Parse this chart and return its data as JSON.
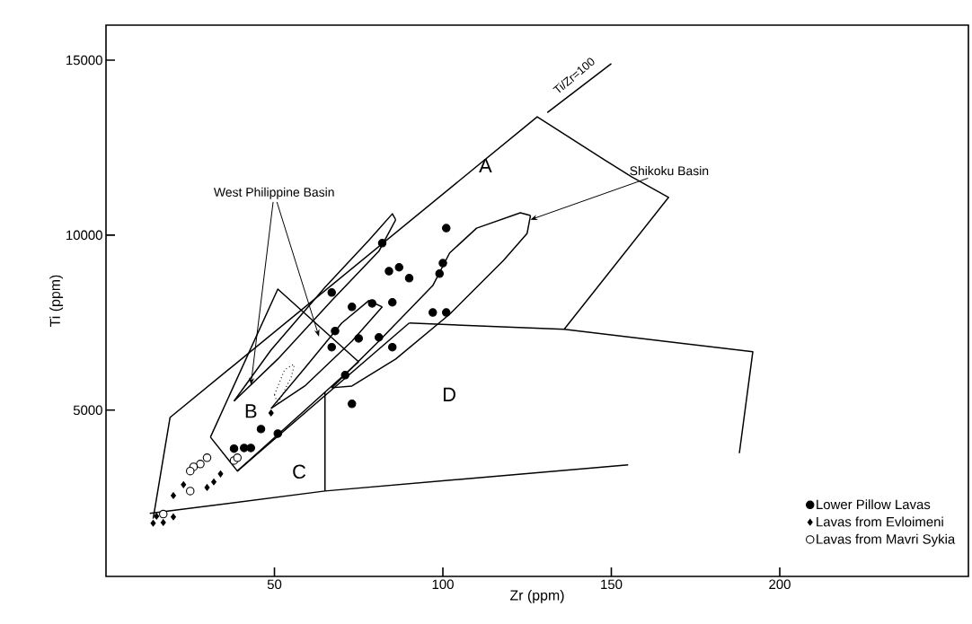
{
  "chart_data": {
    "type": "scatter",
    "xlabel": "Zr (ppm)",
    "ylabel": "Ti (ppm)",
    "xlim": [
      0,
      256
    ],
    "ylim": [
      250,
      16000
    ],
    "xticks": [
      50,
      100,
      150,
      200
    ],
    "yticks": [
      5000,
      10000,
      15000
    ],
    "grid": false,
    "legend": "bottom right",
    "annotations": [
      "A",
      "B",
      "C",
      "D",
      {
        "text": "West Philippine Basin",
        "x": 43,
        "y": 5720
      },
      "Shikoku Basin",
      {
        "text": "Ti/Zr=100",
        "x": 140,
        "y": 14200
      }
    ],
    "series": [
      {
        "name": "Lower Pillow Lavas",
        "marker": "circle",
        "color": "#000000",
        "x": [
          82,
          101,
          67,
          73,
          79,
          85,
          84,
          87,
          90,
          99,
          100,
          97,
          101,
          68,
          75,
          81,
          67,
          85,
          71,
          73,
          46,
          51,
          38,
          41,
          43
        ],
        "values": [
          9770,
          10200,
          8360,
          7950,
          8050,
          8080,
          8970,
          9080,
          8770,
          8900,
          9200,
          7790,
          7790,
          7260,
          7050,
          7080,
          6800,
          6800,
          6000,
          5180,
          4460,
          4330,
          3900,
          3920,
          3920
        ]
      },
      {
        "name": "Lavas from Evloimeni",
        "marker": "diamond",
        "color": "#000000",
        "x": [
          14,
          17,
          20,
          20,
          23,
          30,
          32,
          34,
          49,
          15
        ],
        "values": [
          1770,
          1790,
          1950,
          2560,
          2870,
          2790,
          2950,
          3180,
          4920,
          1970
        ]
      },
      {
        "name": "Lavas from Mavri Sykia",
        "marker": "circle",
        "color": "#ffffff",
        "x": [
          30,
          28,
          26,
          25,
          25,
          38,
          39,
          17
        ],
        "values": [
          3640,
          3460,
          3380,
          3260,
          2690,
          3560,
          3640,
          2030
        ]
      },
      {
        "type": "line",
        "marker": "none",
        "line_style": "solid",
        "color": "#000000",
        "x": [
          14,
          19,
          128,
          148,
          156,
          167,
          136
        ],
        "values": [
          1900,
          4790,
          13380,
          12150,
          11670,
          11080,
          7310
        ]
      },
      {
        "type": "line",
        "marker": "none",
        "line_style": "solid",
        "color": "#000000",
        "x": [
          90,
          136,
          192,
          188
        ],
        "values": [
          7490,
          7310,
          6670,
          3770
        ]
      },
      {
        "type": "line",
        "marker": "none",
        "line_style": "solid",
        "color": "#000000",
        "x": [
          13,
          65,
          155
        ],
        "values": [
          2050,
          2690,
          3440
        ]
      },
      {
        "type": "line",
        "marker": "none",
        "line_style": "solid",
        "color": "#000000",
        "x": [
          39,
          90
        ],
        "values": [
          3260,
          7490
        ]
      },
      {
        "type": "line",
        "marker": "none",
        "line_style": "solid",
        "color": "#000000",
        "x": [
          65,
          65
        ],
        "values": [
          5510,
          2690
        ]
      },
      {
        "type": "line",
        "marker": "none",
        "line_style": "solid",
        "color": "#000000",
        "x": [
          31,
          51,
          75
        ],
        "values": [
          4230,
          8460,
          6380
        ]
      },
      {
        "type": "line",
        "marker": "none",
        "line_style": "solid",
        "color": "#000000",
        "x": [
          31,
          39,
          75
        ],
        "values": [
          4230,
          3260,
          6380
        ]
      },
      {
        "type": "line",
        "marker": "none",
        "line_style": "solid",
        "color": "#000000",
        "x": [
          131,
          150
        ],
        "values": [
          13500,
          14900
        ]
      },
      {
        "type": "line",
        "marker": "none",
        "line_style": "solid",
        "color": "#000000",
        "x": [
          38,
          49,
          65,
          78,
          85,
          86
        ],
        "values": [
          5260,
          6720,
          8510,
          9850,
          10610,
          10440
        ]
      },
      {
        "type": "line",
        "marker": "none",
        "line_style": "solid",
        "color": "#000000",
        "x": [
          38,
          51,
          67,
          81,
          86
        ],
        "values": [
          5260,
          6460,
          8130,
          9540,
          10440
        ]
      },
      {
        "type": "line",
        "marker": "none",
        "line_style": "solid",
        "color": "#000000",
        "x": [
          49,
          59,
          70,
          78,
          82
        ],
        "values": [
          5050,
          6200,
          7490,
          8130,
          7950
        ]
      },
      {
        "type": "line",
        "marker": "none",
        "line_style": "solid",
        "color": "#000000",
        "x": [
          49,
          59,
          73,
          82
        ],
        "values": [
          5050,
          5690,
          6970,
          7950
        ]
      },
      {
        "type": "line",
        "marker": "none",
        "line_style": "dotted",
        "color": "#000000",
        "x": [
          50,
          53,
          56
        ],
        "values": [
          5440,
          6150,
          6330
        ]
      },
      {
        "type": "line",
        "marker": "none",
        "line_style": "dotted",
        "color": "#000000",
        "x": [
          50,
          51,
          55,
          56
        ],
        "values": [
          5440,
          5180,
          5950,
          6330
        ]
      },
      {
        "type": "line",
        "marker": "none",
        "line_style": "solid",
        "color": "#000000",
        "x": [
          67,
          81,
          97,
          102,
          110,
          123,
          126
        ],
        "values": [
          5640,
          6970,
          8560,
          9490,
          10200,
          10640,
          10560
        ]
      },
      {
        "type": "line",
        "marker": "none",
        "line_style": "solid",
        "color": "#000000",
        "x": [
          67,
          73,
          86,
          102,
          118,
          125,
          126
        ],
        "values": [
          5640,
          5690,
          6460,
          7740,
          9280,
          10050,
          10560
        ]
      }
    ]
  }
}
